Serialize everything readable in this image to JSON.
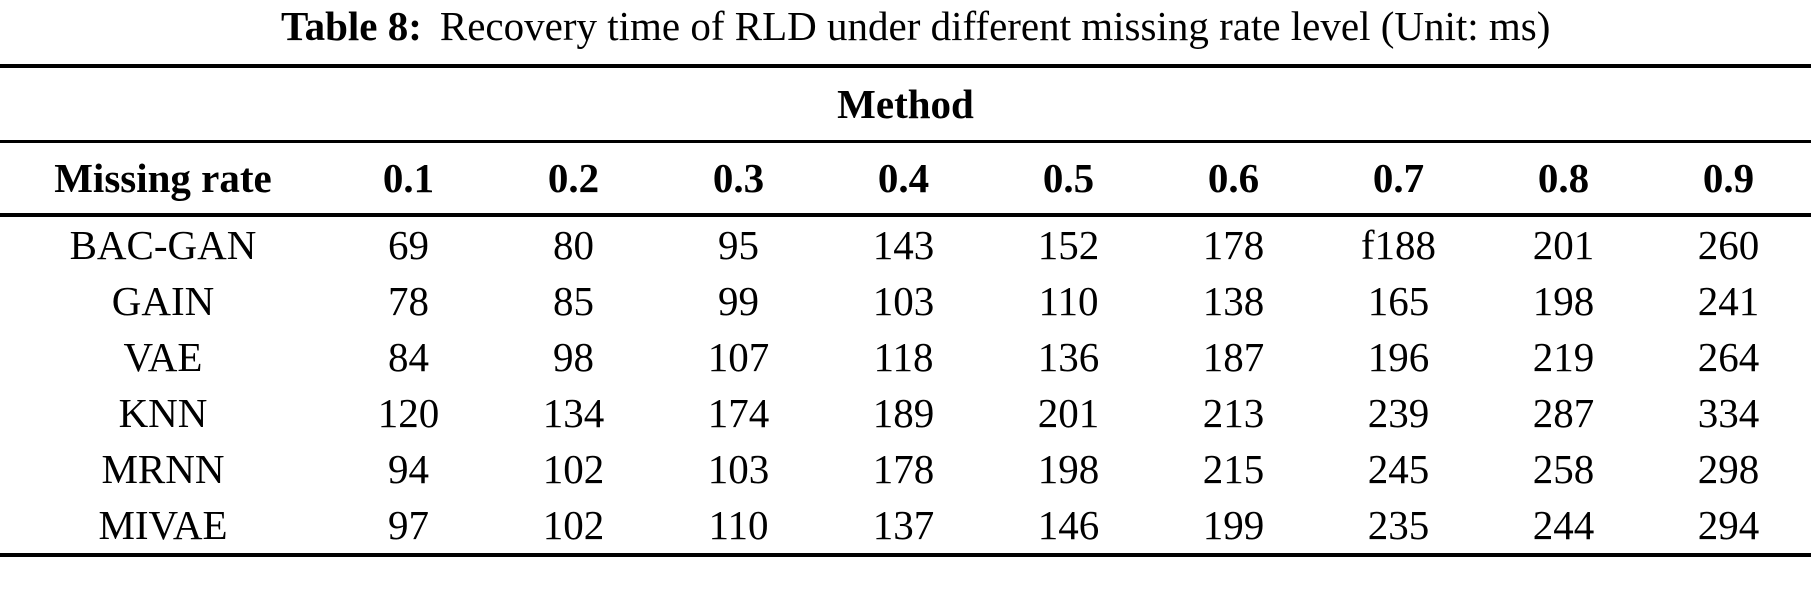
{
  "caption": {
    "label": "Table 8:",
    "text": "Recovery time of RLD under different missing rate level (Unit: ms)"
  },
  "table": {
    "group_header": "Method",
    "header": [
      "Missing rate",
      "0.1",
      "0.2",
      "0.3",
      "0.4",
      "0.5",
      "0.6",
      "0.7",
      "0.8",
      "0.9"
    ],
    "rows": [
      {
        "method": "BAC-GAN",
        "values": [
          "69",
          "80",
          "95",
          "143",
          "152",
          "178",
          "f188",
          "201",
          "260"
        ]
      },
      {
        "method": "GAIN",
        "values": [
          "78",
          "85",
          "99",
          "103",
          "110",
          "138",
          "165",
          "198",
          "241"
        ]
      },
      {
        "method": "VAE",
        "values": [
          "84",
          "98",
          "107",
          "118",
          "136",
          "187",
          "196",
          "219",
          "264"
        ]
      },
      {
        "method": "KNN",
        "values": [
          "120",
          "134",
          "174",
          "189",
          "201",
          "213",
          "239",
          "287",
          "334"
        ]
      },
      {
        "method": "MRNN",
        "values": [
          "94",
          "102",
          "103",
          "178",
          "198",
          "215",
          "245",
          "258",
          "298"
        ]
      },
      {
        "method": "MIVAE",
        "values": [
          "97",
          "102",
          "110",
          "137",
          "146",
          "199",
          "235",
          "244",
          "294"
        ]
      }
    ]
  },
  "colors": {
    "text": "#000000",
    "background": "#ffffff",
    "rule": "#000000"
  }
}
